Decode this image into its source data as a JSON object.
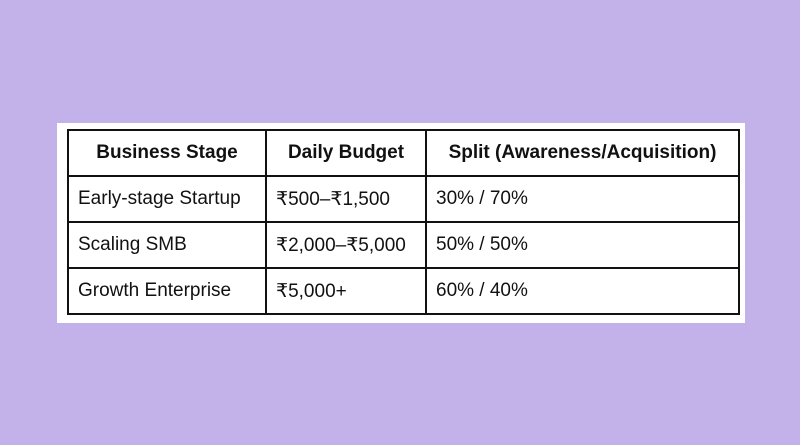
{
  "table": {
    "headers": [
      "Business Stage",
      "Daily Budget",
      "Split (Awareness/Acquisition)"
    ],
    "rows": [
      [
        "Early-stage Startup",
        "₹500–₹1,500",
        "30% / 70%"
      ],
      [
        "Scaling SMB",
        "₹2,000–₹5,000",
        "50% / 50%"
      ],
      [
        "Growth Enterprise",
        "₹5,000+",
        "60% / 40%"
      ]
    ]
  },
  "colors": {
    "background": "#c3b2e9",
    "card": "#ffffff",
    "border": "#111111",
    "text": "#111111"
  }
}
